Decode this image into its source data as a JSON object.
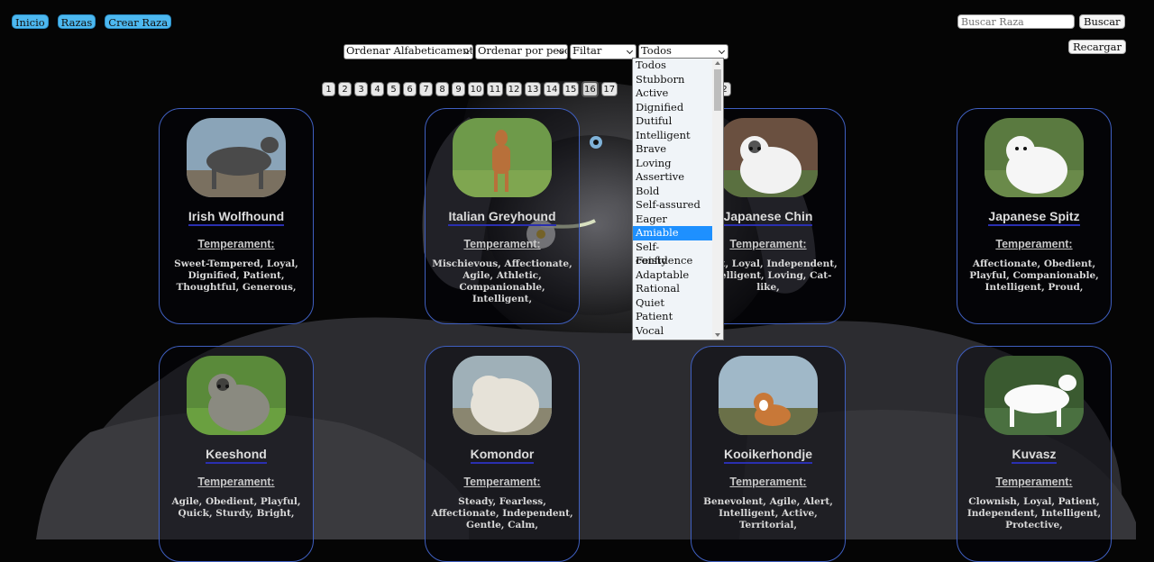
{
  "nav": {
    "inicio": "Inicio",
    "razas": "Razas",
    "crear": "Crear Raza"
  },
  "search": {
    "placeholder": "Buscar Raza",
    "button": "Buscar",
    "reload": "Recargar"
  },
  "filters": {
    "order_alpha": "Ordenar Alfabeticamente",
    "order_weight": "Ordenar por peso",
    "filter": "Filtar",
    "temperament_selected": "Todos"
  },
  "dropdown_options": [
    "Todos",
    "Stubborn",
    "Active",
    "Dignified",
    "Dutiful",
    "Intelligent",
    "Brave",
    "Loving",
    "Assertive",
    "Bold",
    "Self-assured",
    "Eager",
    "Amiable",
    "Self-confidence",
    "Feisty",
    "Adaptable",
    "Rational",
    "Quiet",
    "Patient",
    "Vocal"
  ],
  "dropdown_highlighted": "Amiable",
  "pages": [
    "1",
    "2",
    "3",
    "4",
    "5",
    "6",
    "7",
    "8",
    "9",
    "10",
    "11",
    "12",
    "13",
    "14",
    "15",
    "16",
    "17"
  ],
  "current_page": "16",
  "pages_tail": "2",
  "temperament_label": "Temperament:",
  "cards": [
    {
      "name": "Irish Wolfhound",
      "temperament": "Sweet-Tempered, Loyal, Dignified, Patient, Thoughtful, Generous,"
    },
    {
      "name": "Italian Greyhound",
      "temperament": "Mischievous, Affectionate, Agile, Athletic, Companionable, Intelligent,"
    },
    {
      "name": "Japanese Chin",
      "temperament": "Alert, Loyal, Independent, Intelligent, Loving, Cat-like,"
    },
    {
      "name": "Japanese Spitz",
      "temperament": "Affectionate, Obedient, Playful, Companionable, Intelligent, Proud,"
    },
    {
      "name": "Keeshond",
      "temperament": "Agile, Obedient, Playful, Quick, Sturdy, Bright,"
    },
    {
      "name": "Komondor",
      "temperament": "Steady, Fearless, Affectionate, Independent, Gentle, Calm,"
    },
    {
      "name": "Kooikerhondje",
      "temperament": "Benevolent, Agile, Alert, Intelligent, Active, Territorial,"
    },
    {
      "name": "Kuvasz",
      "temperament": "Clownish, Loyal, Patient, Independent, Intelligent, Protective,"
    }
  ]
}
